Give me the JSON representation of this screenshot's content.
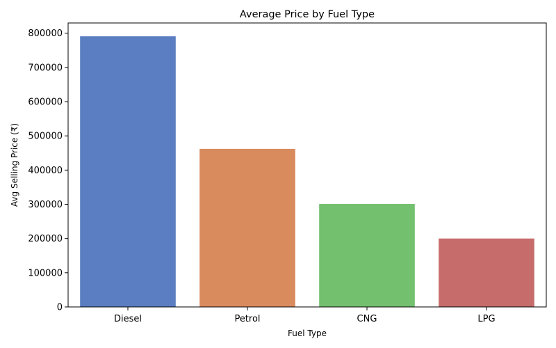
{
  "chart_data": {
    "type": "bar",
    "title": "Average Price by Fuel Type",
    "xlabel": "Fuel Type",
    "ylabel": "Avg Selling Price (₹)",
    "categories": [
      "Diesel",
      "Petrol",
      "CNG",
      "LPG"
    ],
    "values": [
      791000,
      462000,
      301000,
      200000
    ],
    "colors": [
      "#5a7ec1",
      "#d98b5e",
      "#73c06f",
      "#c66c6b"
    ],
    "ylim": [
      0,
      830000
    ],
    "yticks": [
      0,
      100000,
      200000,
      300000,
      400000,
      500000,
      600000,
      700000,
      800000
    ],
    "ytick_labels": [
      "0",
      "100000",
      "200000",
      "300000",
      "400000",
      "500000",
      "600000",
      "700000",
      "800000"
    ],
    "grid": false,
    "legend": "none"
  }
}
